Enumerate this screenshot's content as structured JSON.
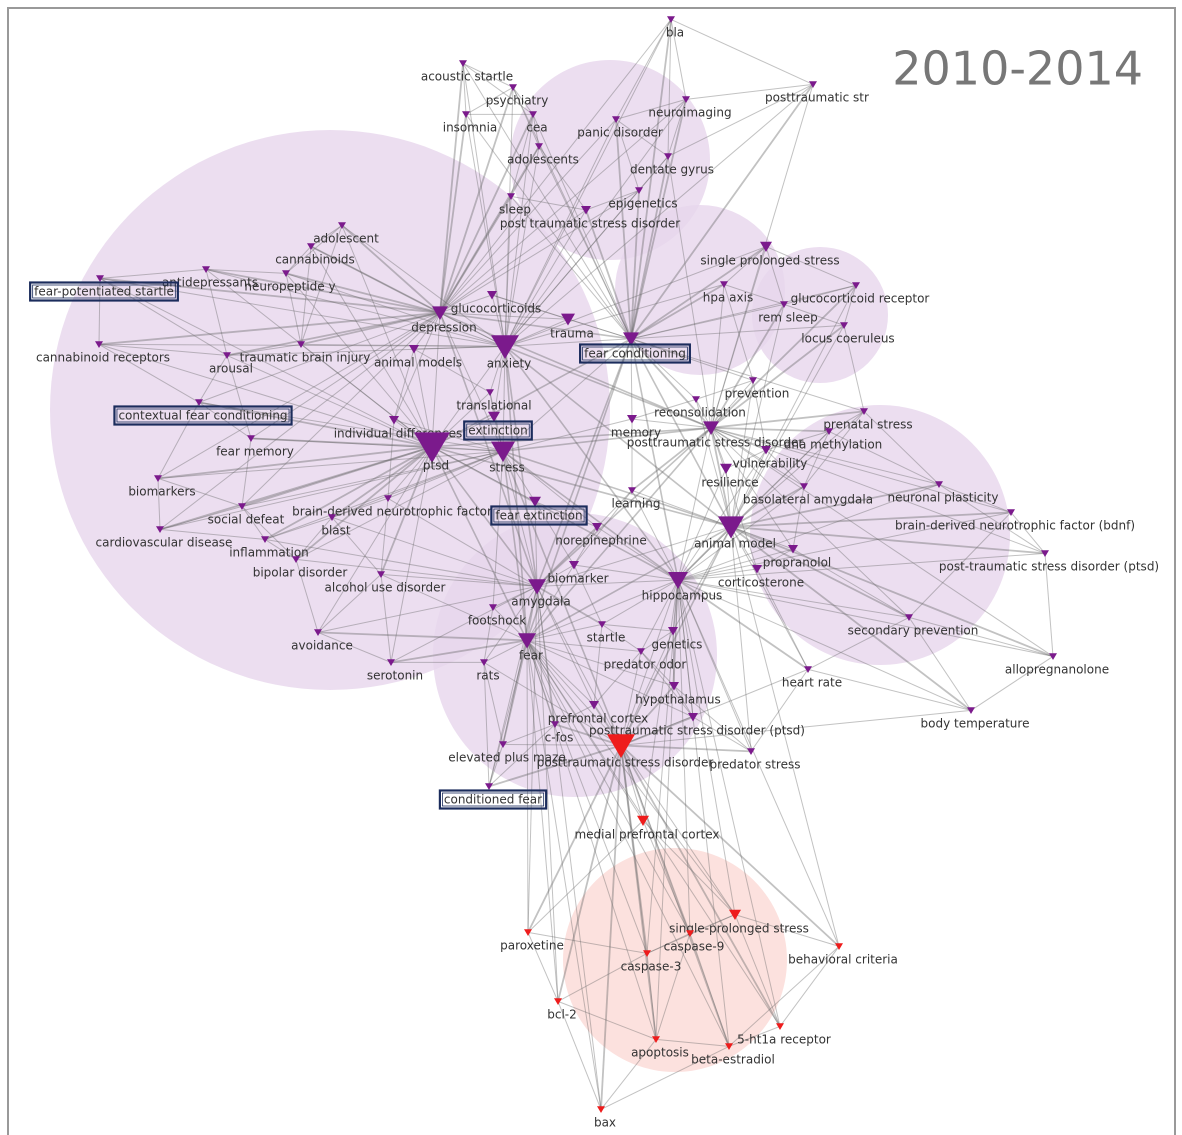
{
  "title": "2010-2014",
  "nodes": [
    {
      "label": "bla",
      "color": "#7b1a8c"
    },
    {
      "label": "acoustic startle",
      "color": "#7b1a8c"
    },
    {
      "label": "psychiatry",
      "color": "#7b1a8c"
    },
    {
      "label": "neuroimaging",
      "color": "#7b1a8c"
    },
    {
      "label": "posttraumatic str",
      "color": "#7b1a8c"
    },
    {
      "label": "insomnia",
      "color": "#7b1a8c"
    },
    {
      "label": "cea",
      "color": "#7b1a8c"
    },
    {
      "label": "panic disorder",
      "color": "#7b1a8c"
    },
    {
      "label": "adolescents",
      "color": "#7b1a8c"
    },
    {
      "label": "dentate gyrus",
      "color": "#7b1a8c"
    },
    {
      "label": "epigenetics",
      "color": "#7b1a8c"
    },
    {
      "label": "sleep",
      "color": "#7b1a8c"
    },
    {
      "label": "post traumatic stress disorder",
      "color": "#7b1a8c"
    },
    {
      "label": "adolescent",
      "color": "#7b1a8c"
    },
    {
      "label": "cannabinoids",
      "color": "#7b1a8c"
    },
    {
      "label": "single prolonged stress",
      "color": "#7b1a8c"
    },
    {
      "label": "antidepressants",
      "color": "#7b1a8c"
    },
    {
      "label": "neuropeptide y",
      "color": "#7b1a8c"
    },
    {
      "label": "fear-potentiated startle",
      "color": "#7b1a8c",
      "boxed": true
    },
    {
      "label": "hpa axis",
      "color": "#7b1a8c"
    },
    {
      "label": "glucocorticoid receptor",
      "color": "#7b1a8c"
    },
    {
      "label": "glucocorticoids",
      "color": "#7b1a8c"
    },
    {
      "label": "rem sleep",
      "color": "#7b1a8c"
    },
    {
      "label": "depression",
      "color": "#7b1a8c"
    },
    {
      "label": "trauma",
      "color": "#7b1a8c"
    },
    {
      "label": "locus coeruleus",
      "color": "#7b1a8c"
    },
    {
      "label": "fear conditioning",
      "color": "#7b1a8c",
      "boxed": true
    },
    {
      "label": "cannabinoid receptors",
      "color": "#7b1a8c"
    },
    {
      "label": "traumatic brain injury",
      "color": "#7b1a8c"
    },
    {
      "label": "animal models",
      "color": "#7b1a8c"
    },
    {
      "label": "anxiety",
      "color": "#7b1a8c"
    },
    {
      "label": "arousal",
      "color": "#7b1a8c"
    },
    {
      "label": "prevention",
      "color": "#7b1a8c"
    },
    {
      "label": "translational",
      "color": "#7b1a8c"
    },
    {
      "label": "contextual fear conditioning",
      "color": "#7b1a8c",
      "boxed": true
    },
    {
      "label": "reconsolidation",
      "color": "#7b1a8c"
    },
    {
      "label": "prenatal stress",
      "color": "#7b1a8c"
    },
    {
      "label": "individual differences",
      "color": "#7b1a8c"
    },
    {
      "label": "extinction",
      "color": "#7b1a8c",
      "boxed": true
    },
    {
      "label": "memory",
      "color": "#7b1a8c"
    },
    {
      "label": "posttraumatic stress disorder",
      "color": "#7b1a8c"
    },
    {
      "label": "dna methylation",
      "color": "#7b1a8c"
    },
    {
      "label": "fear memory",
      "color": "#7b1a8c"
    },
    {
      "label": "vulnerability",
      "color": "#7b1a8c"
    },
    {
      "label": "ptsd",
      "color": "#7b1a8c"
    },
    {
      "label": "stress",
      "color": "#7b1a8c"
    },
    {
      "label": "resilience",
      "color": "#7b1a8c"
    },
    {
      "label": "biomarkers",
      "color": "#7b1a8c"
    },
    {
      "label": "learning",
      "color": "#7b1a8c"
    },
    {
      "label": "basolateral amygdala",
      "color": "#7b1a8c"
    },
    {
      "label": "neuronal plasticity",
      "color": "#7b1a8c"
    },
    {
      "label": "brain-derived neurotrophic factor",
      "color": "#7b1a8c"
    },
    {
      "label": "fear extinction",
      "color": "#7b1a8c",
      "boxed": true
    },
    {
      "label": "social defeat",
      "color": "#7b1a8c"
    },
    {
      "label": "blast",
      "color": "#7b1a8c"
    },
    {
      "label": "brain-derived neurotrophic factor (bdnf)",
      "color": "#7b1a8c"
    },
    {
      "label": "cardiovascular disease",
      "color": "#7b1a8c"
    },
    {
      "label": "norepinephrine",
      "color": "#7b1a8c"
    },
    {
      "label": "animal model",
      "color": "#7b1a8c"
    },
    {
      "label": "inflammation",
      "color": "#7b1a8c"
    },
    {
      "label": "propranolol",
      "color": "#7b1a8c"
    },
    {
      "label": "post-traumatic stress disorder (ptsd)",
      "color": "#7b1a8c"
    },
    {
      "label": "bipolar disorder",
      "color": "#7b1a8c"
    },
    {
      "label": "biomarker",
      "color": "#7b1a8c"
    },
    {
      "label": "corticosterone",
      "color": "#7b1a8c"
    },
    {
      "label": "alcohol use disorder",
      "color": "#7b1a8c"
    },
    {
      "label": "hippocampus",
      "color": "#7b1a8c"
    },
    {
      "label": "amygdala",
      "color": "#7b1a8c"
    },
    {
      "label": "footshock",
      "color": "#7b1a8c"
    },
    {
      "label": "secondary prevention",
      "color": "#7b1a8c"
    },
    {
      "label": "startle",
      "color": "#7b1a8c"
    },
    {
      "label": "genetics",
      "color": "#7b1a8c"
    },
    {
      "label": "avoidance",
      "color": "#7b1a8c"
    },
    {
      "label": "fear",
      "color": "#7b1a8c"
    },
    {
      "label": "predator odor",
      "color": "#7b1a8c"
    },
    {
      "label": "allopregnanolone",
      "color": "#7b1a8c"
    },
    {
      "label": "serotonin",
      "color": "#7b1a8c"
    },
    {
      "label": "rats",
      "color": "#7b1a8c"
    },
    {
      "label": "heart rate",
      "color": "#7b1a8c"
    },
    {
      "label": "hypothalamus",
      "color": "#7b1a8c"
    },
    {
      "label": "prefrontal cortex",
      "color": "#7b1a8c"
    },
    {
      "label": "body temperature",
      "color": "#7b1a8c"
    },
    {
      "label": "posttraumatic stress disorder (ptsd)",
      "color": "#7b1a8c"
    },
    {
      "label": "c-fos",
      "color": "#7b1a8c"
    },
    {
      "label": "elevated plus maze",
      "color": "#7b1a8c"
    },
    {
      "label": "posttraumatic stress disorder",
      "color": "#ee1c1c"
    },
    {
      "label": "predator stress",
      "color": "#7b1a8c"
    },
    {
      "label": "conditioned fear",
      "color": "#7b1a8c",
      "boxed": true
    },
    {
      "label": "medial prefrontal cortex",
      "color": "#ee1c1c"
    },
    {
      "label": "single-prolonged stress",
      "color": "#ee1c1c"
    },
    {
      "label": "caspase-9",
      "color": "#ee1c1c"
    },
    {
      "label": "paroxetine",
      "color": "#ee1c1c"
    },
    {
      "label": "behavioral criteria",
      "color": "#ee1c1c"
    },
    {
      "label": "caspase-3",
      "color": "#ee1c1c"
    },
    {
      "label": "bcl-2",
      "color": "#ee1c1c"
    },
    {
      "label": "5-ht1a receptor",
      "color": "#ee1c1c"
    },
    {
      "label": "apoptosis",
      "color": "#ee1c1c"
    },
    {
      "label": "beta-estradiol",
      "color": "#ee1c1c"
    },
    {
      "label": "bax",
      "color": "#ee1c1c"
    }
  ]
}
